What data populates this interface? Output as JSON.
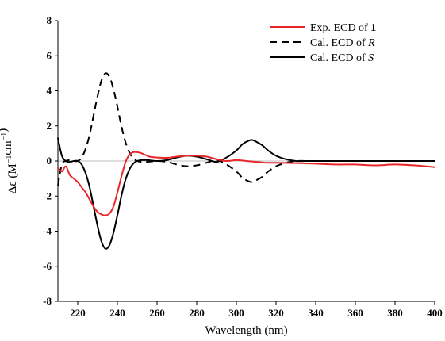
{
  "chart_data": {
    "type": "line",
    "xlabel": "Wavelength (nm)",
    "ylabel": "Δε (M⁻¹cm⁻¹)",
    "xlim": [
      210,
      400
    ],
    "ylim": [
      -8,
      8
    ],
    "x_ticks": [
      220,
      240,
      260,
      280,
      300,
      320,
      340,
      360,
      380,
      400
    ],
    "y_ticks": [
      -8,
      -6,
      -4,
      -2,
      0,
      2,
      4,
      6,
      8
    ],
    "grid": false,
    "legend_position": "top-right",
    "series": [
      {
        "name": "Exp. ECD of 1",
        "name_parts": [
          "Exp. ECD of ",
          "1"
        ],
        "color": "#e8262a",
        "dash": "solid",
        "x": [
          210,
          212,
          214,
          216,
          218,
          220,
          222,
          224,
          226,
          228,
          230,
          232,
          234,
          236,
          238,
          240,
          242,
          244,
          246,
          248,
          250,
          252,
          254,
          256,
          258,
          260,
          265,
          270,
          275,
          280,
          285,
          290,
          295,
          300,
          305,
          310,
          315,
          320,
          330,
          340,
          350,
          360,
          370,
          380,
          390,
          400
        ],
        "y": [
          -0.4,
          -0.6,
          -0.3,
          -0.8,
          -1.0,
          -1.2,
          -1.5,
          -1.8,
          -2.2,
          -2.6,
          -2.9,
          -3.05,
          -3.1,
          -3.0,
          -2.6,
          -1.8,
          -0.9,
          -0.1,
          0.35,
          0.5,
          0.5,
          0.45,
          0.35,
          0.25,
          0.22,
          0.2,
          0.18,
          0.25,
          0.3,
          0.3,
          0.25,
          0.1,
          0.0,
          0.05,
          0.0,
          -0.05,
          -0.1,
          -0.1,
          -0.12,
          -0.15,
          -0.2,
          -0.2,
          -0.25,
          -0.2,
          -0.25,
          -0.35
        ]
      },
      {
        "name": "Cal. ECD of R",
        "name_parts": [
          "Cal. ECD of ",
          "R"
        ],
        "color": "#000000",
        "dash": "dashed",
        "x": [
          210,
          212,
          214,
          216,
          218,
          220,
          222,
          224,
          226,
          228,
          230,
          232,
          234,
          236,
          238,
          240,
          242,
          244,
          246,
          248,
          250,
          252,
          255,
          260,
          265,
          270,
          275,
          280,
          285,
          290,
          295,
          300,
          303,
          306,
          308,
          310,
          313,
          316,
          320,
          325,
          330,
          335,
          340,
          350,
          360,
          380,
          400
        ],
        "y": [
          -1.4,
          -0.2,
          0.0,
          0.05,
          0.0,
          0.0,
          0.2,
          0.7,
          1.5,
          2.6,
          3.7,
          4.6,
          5.0,
          4.8,
          4.1,
          3.1,
          2.0,
          1.1,
          0.5,
          0.15,
          0.0,
          -0.05,
          -0.05,
          0.0,
          -0.05,
          -0.2,
          -0.3,
          -0.25,
          -0.1,
          0.05,
          -0.2,
          -0.6,
          -0.95,
          -1.15,
          -1.2,
          -1.1,
          -0.9,
          -0.6,
          -0.3,
          -0.1,
          0.0,
          0.0,
          0.0,
          0.0,
          0.0,
          0.0,
          0.0
        ]
      },
      {
        "name": "Cal. ECD of S",
        "name_parts": [
          "Cal. ECD of ",
          "S"
        ],
        "color": "#000000",
        "dash": "solid",
        "x": [
          210,
          212,
          214,
          216,
          218,
          220,
          222,
          224,
          226,
          228,
          230,
          232,
          234,
          236,
          238,
          240,
          242,
          244,
          246,
          248,
          250,
          252,
          255,
          260,
          265,
          270,
          275,
          280,
          285,
          290,
          295,
          300,
          303,
          306,
          308,
          310,
          313,
          316,
          320,
          325,
          330,
          335,
          340,
          350,
          360,
          380,
          400
        ],
        "y": [
          1.3,
          0.3,
          0.0,
          -0.05,
          0.0,
          0.0,
          -0.2,
          -0.7,
          -1.5,
          -2.6,
          -3.7,
          -4.6,
          -5.0,
          -4.8,
          -4.1,
          -3.1,
          -2.0,
          -1.1,
          -0.5,
          -0.15,
          0.0,
          0.05,
          0.05,
          0.0,
          0.05,
          0.2,
          0.3,
          0.25,
          0.1,
          -0.05,
          0.2,
          0.6,
          0.95,
          1.15,
          1.2,
          1.1,
          0.9,
          0.6,
          0.3,
          0.1,
          0.0,
          0.0,
          0.0,
          0.0,
          0.0,
          0.0,
          0.0
        ]
      }
    ]
  }
}
